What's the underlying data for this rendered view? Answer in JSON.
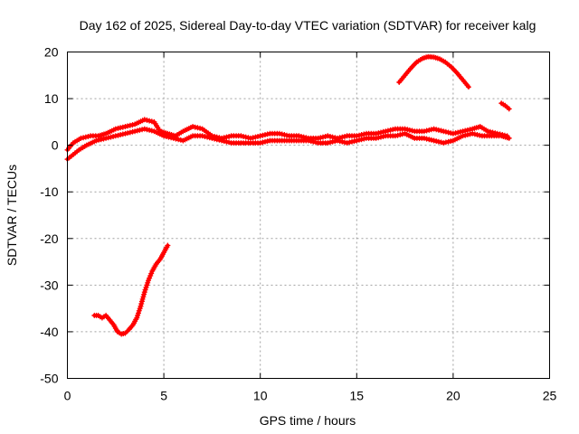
{
  "chart_data": {
    "type": "scatter",
    "title": "Day 162 of 2025, Sidereal Day-to-day VTEC variation (SDTVAR) for receiver kalg",
    "xlabel": "GPS time / hours",
    "ylabel": "SDTVAR / TECUs",
    "xlim": [
      0,
      25
    ],
    "ylim": [
      -50,
      20
    ],
    "xticks": [
      0,
      5,
      10,
      15,
      20,
      25
    ],
    "yticks": [
      -50,
      -40,
      -30,
      -20,
      -10,
      0,
      10,
      20
    ],
    "xtick_labels": [
      "0",
      "5",
      "10",
      "15",
      "20",
      "25"
    ],
    "ytick_labels": [
      "-50",
      "-40",
      "-30",
      "-20",
      "-10",
      "0",
      "10",
      "20"
    ],
    "grid": true,
    "marker": "+",
    "series_color": "#ff0000",
    "series": [
      {
        "name": "main-band-upper",
        "points": [
          [
            0.0,
            -1.0
          ],
          [
            0.3,
            0.5
          ],
          [
            0.7,
            1.5
          ],
          [
            1.2,
            2.0
          ],
          [
            1.6,
            2.0
          ],
          [
            2.0,
            2.5
          ],
          [
            2.5,
            3.5
          ],
          [
            3.0,
            4.0
          ],
          [
            3.5,
            4.5
          ],
          [
            4.0,
            5.5
          ],
          [
            4.5,
            5.0
          ],
          [
            4.8,
            3.0
          ],
          [
            5.2,
            2.5
          ],
          [
            5.6,
            2.0
          ],
          [
            6.0,
            3.0
          ],
          [
            6.5,
            4.0
          ],
          [
            7.0,
            3.5
          ],
          [
            7.5,
            2.0
          ],
          [
            8.0,
            1.5
          ],
          [
            8.5,
            2.0
          ],
          [
            9.0,
            2.0
          ],
          [
            9.5,
            1.5
          ],
          [
            10.0,
            2.0
          ],
          [
            10.5,
            2.5
          ],
          [
            11.0,
            2.5
          ],
          [
            11.5,
            2.0
          ],
          [
            12.0,
            2.0
          ],
          [
            12.5,
            1.5
          ],
          [
            13.0,
            1.5
          ],
          [
            13.5,
            2.0
          ],
          [
            14.0,
            1.5
          ],
          [
            14.5,
            2.0
          ],
          [
            15.0,
            2.0
          ],
          [
            15.5,
            2.5
          ],
          [
            16.0,
            2.5
          ],
          [
            16.5,
            3.0
          ],
          [
            17.0,
            3.5
          ],
          [
            17.5,
            3.5
          ],
          [
            18.0,
            3.0
          ],
          [
            18.5,
            3.0
          ],
          [
            19.0,
            3.5
          ],
          [
            19.5,
            3.0
          ],
          [
            20.0,
            2.5
          ],
          [
            20.5,
            3.0
          ],
          [
            21.0,
            3.5
          ],
          [
            21.4,
            4.0
          ],
          [
            21.8,
            3.0
          ],
          [
            22.3,
            2.5
          ],
          [
            22.8,
            2.0
          ]
        ]
      },
      {
        "name": "main-band-lower",
        "points": [
          [
            0.0,
            -3.0
          ],
          [
            0.3,
            -2.0
          ],
          [
            0.6,
            -1.0
          ],
          [
            1.0,
            0.0
          ],
          [
            1.5,
            1.0
          ],
          [
            2.0,
            1.5
          ],
          [
            2.5,
            2.0
          ],
          [
            3.0,
            2.5
          ],
          [
            3.5,
            3.0
          ],
          [
            4.0,
            3.5
          ],
          [
            4.5,
            3.0
          ],
          [
            5.0,
            2.0
          ],
          [
            5.5,
            1.5
          ],
          [
            6.0,
            1.0
          ],
          [
            6.5,
            2.0
          ],
          [
            7.0,
            2.0
          ],
          [
            7.5,
            1.5
          ],
          [
            8.0,
            1.0
          ],
          [
            8.5,
            0.5
          ],
          [
            9.0,
            0.5
          ],
          [
            9.5,
            0.5
          ],
          [
            10.0,
            0.5
          ],
          [
            10.5,
            1.0
          ],
          [
            11.0,
            1.0
          ],
          [
            11.5,
            1.0
          ],
          [
            12.0,
            1.0
          ],
          [
            12.5,
            1.0
          ],
          [
            13.0,
            0.5
          ],
          [
            13.5,
            0.5
          ],
          [
            14.0,
            1.0
          ],
          [
            14.5,
            0.5
          ],
          [
            15.0,
            1.0
          ],
          [
            15.5,
            1.5
          ],
          [
            16.0,
            1.5
          ],
          [
            16.5,
            2.0
          ],
          [
            17.0,
            2.0
          ],
          [
            17.5,
            2.5
          ],
          [
            18.0,
            1.5
          ],
          [
            18.5,
            1.5
          ],
          [
            19.0,
            1.0
          ],
          [
            19.5,
            0.5
          ],
          [
            20.0,
            1.0
          ],
          [
            20.5,
            2.0
          ],
          [
            21.0,
            2.5
          ],
          [
            21.5,
            2.0
          ],
          [
            22.0,
            2.0
          ],
          [
            22.5,
            2.0
          ],
          [
            22.9,
            1.5
          ]
        ]
      },
      {
        "name": "dip-segment",
        "points": [
          [
            1.4,
            -36.5
          ],
          [
            1.6,
            -36.5
          ],
          [
            1.8,
            -37.0
          ],
          [
            2.0,
            -36.5
          ],
          [
            2.2,
            -37.5
          ],
          [
            2.4,
            -38.5
          ],
          [
            2.6,
            -40.0
          ],
          [
            2.8,
            -40.5
          ],
          [
            3.0,
            -40.3
          ],
          [
            3.2,
            -39.5
          ],
          [
            3.4,
            -38.5
          ],
          [
            3.6,
            -37.0
          ],
          [
            3.8,
            -34.5
          ],
          [
            4.0,
            -31.5
          ],
          [
            4.2,
            -29.0
          ],
          [
            4.4,
            -27.0
          ],
          [
            4.6,
            -25.5
          ],
          [
            4.8,
            -24.5
          ],
          [
            5.0,
            -23.0
          ],
          [
            5.2,
            -21.5
          ]
        ]
      },
      {
        "name": "arc-segment",
        "points": [
          [
            17.2,
            13.5
          ],
          [
            17.5,
            15.0
          ],
          [
            17.8,
            16.5
          ],
          [
            18.1,
            17.8
          ],
          [
            18.4,
            18.6
          ],
          [
            18.7,
            19.0
          ],
          [
            19.0,
            18.9
          ],
          [
            19.3,
            18.5
          ],
          [
            19.6,
            17.8
          ],
          [
            19.9,
            16.8
          ],
          [
            20.2,
            15.5
          ],
          [
            20.5,
            14.0
          ],
          [
            20.8,
            12.5
          ]
        ]
      },
      {
        "name": "short-segment",
        "points": [
          [
            22.5,
            9.0
          ],
          [
            22.7,
            8.5
          ],
          [
            22.9,
            7.8
          ]
        ]
      }
    ]
  }
}
